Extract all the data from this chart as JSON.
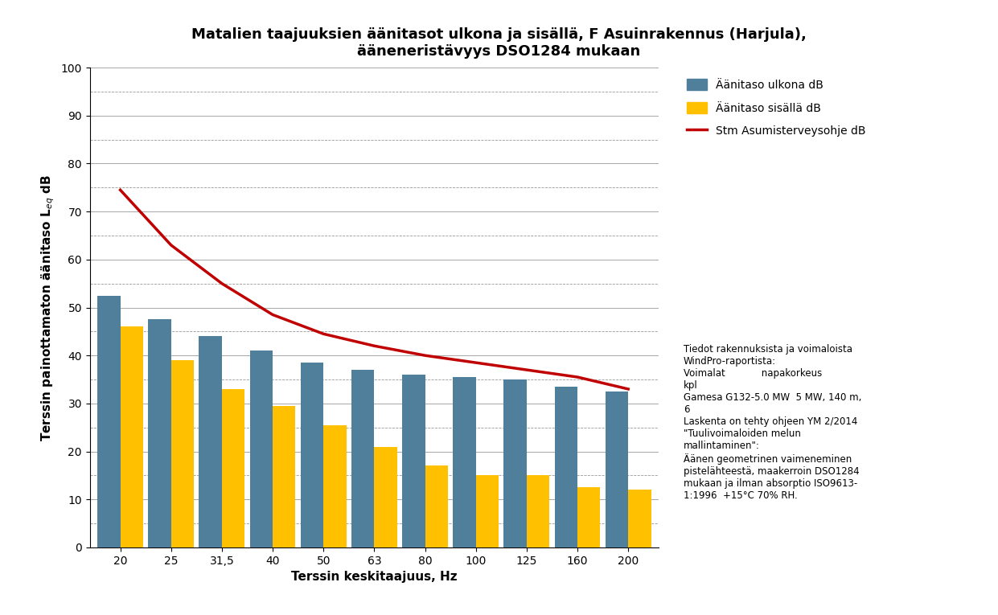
{
  "title": "Matalien taajuuksien äänitasot ulkona ja sisällä, F Asuinrakennus (Harjula),\nääneneristävyys DSO1284 mukaan",
  "xlabel": "Terssin keskitaajuus, Hz",
  "categories": [
    "20",
    "25",
    "31,5",
    "40",
    "50",
    "63",
    "80",
    "100",
    "125",
    "160",
    "200"
  ],
  "outdoor_values": [
    52.5,
    47.5,
    44.0,
    41.0,
    38.5,
    37.0,
    36.0,
    35.5,
    35.0,
    33.5,
    32.5
  ],
  "indoor_values": [
    46.0,
    39.0,
    33.0,
    29.5,
    25.5,
    21.0,
    17.0,
    15.0,
    15.0,
    12.5,
    12.0
  ],
  "red_line_y": [
    74.5,
    63.0,
    55.0,
    48.5,
    44.5,
    42.0,
    40.0,
    38.5,
    37.0,
    35.5,
    33.0
  ],
  "bar_color_outdoor": "#4F7F9B",
  "bar_color_indoor": "#FFC000",
  "red_line_color": "#C00000",
  "ylim": [
    0,
    100
  ],
  "yticks": [
    0,
    10,
    20,
    30,
    40,
    50,
    60,
    70,
    80,
    90,
    100
  ],
  "solid_yticks": [
    0,
    10,
    20,
    30,
    40,
    50,
    60,
    70,
    80,
    90,
    100
  ],
  "dashed_yticks": [
    5,
    15,
    25,
    35,
    45,
    55,
    65,
    75,
    85,
    95
  ],
  "legend_labels": [
    "Äänitaso ulkona dB",
    "Äänitaso sisällä dB",
    "Stm Asumisterveysohje dB"
  ],
  "annotation_text": "Tiedot rakennuksista ja voimaloista\nWindPro-raportista:\nVoimalat            napakorkeus\nkpl\nGamesa G132-5.0 MW  5 MW, 140 m,\n6\nLaskenta on tehty ohjeen YM 2/2014\n\"Tuulivoimaloiden melun\nmallintaminen\":\nÄänen geometrinen vaimeneminen\npistelähteestä, maakerroin DSO1284\nmukaan ja ilman absorptio ISO9613-\n1:1996  +15°C 70% RH.",
  "background_color": "#FFFFFF",
  "title_fontsize": 13,
  "axis_label_fontsize": 11,
  "tick_fontsize": 10,
  "legend_fontsize": 10,
  "annotation_fontsize": 8.5,
  "bar_width": 0.45
}
